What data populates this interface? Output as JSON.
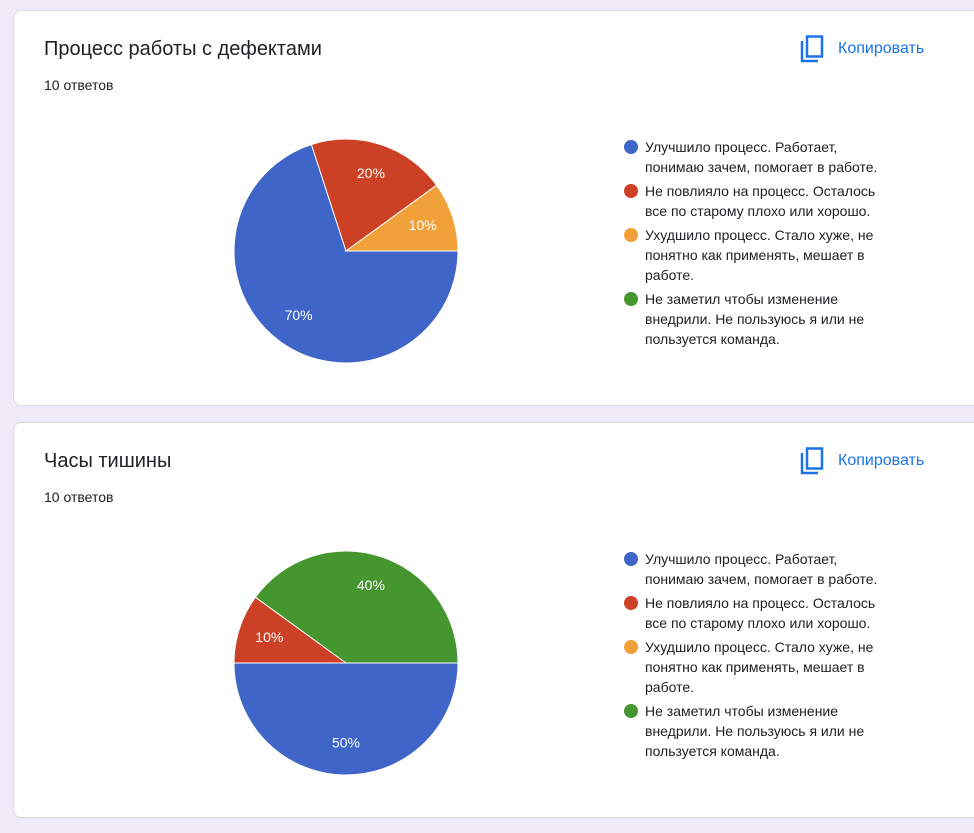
{
  "ui": {
    "copy_label": "Копировать"
  },
  "chart_data": [
    {
      "type": "pie",
      "title": "Процесс работы с дефектами",
      "subtitle": "10 ответов",
      "categories": [
        "Улучшило процесс. Работает, понимаю зачем, помогает в работе.",
        "Не повлияло на процесс. Осталось все по старому плохо или хорошо.",
        "Ухудшило процесс. Стало хуже, не понятно как применять, мешает в работе.",
        "Не заметил чтобы изменение внедрили. Не пользуюсь я или не пользуется команда."
      ],
      "values": [
        70,
        20,
        10,
        0
      ],
      "value_labels": [
        "70%",
        "20%",
        "10%",
        null
      ],
      "colors": [
        "#4065c8",
        "#cc4125",
        "#f1a03a",
        "#45962f"
      ]
    },
    {
      "type": "pie",
      "title": "Часы тишины",
      "subtitle": "10 ответов",
      "categories": [
        "Улучшило процесс. Работает, понимаю зачем, помогает в работе.",
        "Не повлияло на процесс. Осталось все по старому плохо или хорошо.",
        "Ухудшило процесс. Стало хуже, не понятно как применять, мешает в работе.",
        "Не заметил чтобы изменение внедрили. Не пользуюсь я или не пользуется команда."
      ],
      "values": [
        50,
        10,
        0,
        40
      ],
      "value_labels": [
        "50%",
        "10%",
        null,
        "40%"
      ],
      "colors": [
        "#4065c8",
        "#cc4125",
        "#f1a03a",
        "#45962f"
      ]
    }
  ]
}
